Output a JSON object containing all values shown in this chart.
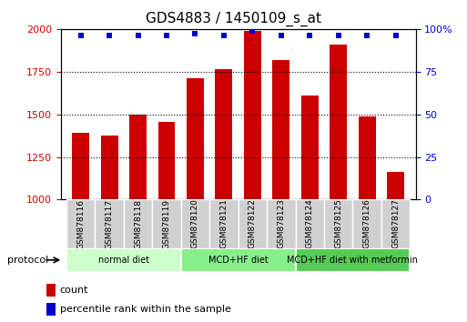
{
  "title": "GDS4883 / 1450109_s_at",
  "samples": [
    "GSM878116",
    "GSM878117",
    "GSM878118",
    "GSM878119",
    "GSM878120",
    "GSM878121",
    "GSM878122",
    "GSM878123",
    "GSM878124",
    "GSM878125",
    "GSM878126",
    "GSM878127"
  ],
  "counts": [
    1390,
    1375,
    1500,
    1455,
    1710,
    1765,
    1990,
    1820,
    1610,
    1910,
    1490,
    1165
  ],
  "percentile_ranks": [
    96,
    96,
    96,
    96,
    97,
    96,
    99,
    96,
    96,
    96,
    96,
    96
  ],
  "bar_color": "#cc0000",
  "dot_color": "#0000cc",
  "ylim_left": [
    1000,
    2000
  ],
  "ylim_right": [
    0,
    100
  ],
  "yticks_left": [
    1000,
    1250,
    1500,
    1750,
    2000
  ],
  "yticks_right": [
    0,
    25,
    50,
    75,
    100
  ],
  "groups": [
    {
      "label": "normal diet",
      "start": 0,
      "end": 4,
      "color": "#ccffcc"
    },
    {
      "label": "MCD+HF diet",
      "start": 4,
      "end": 8,
      "color": "#88ee88"
    },
    {
      "label": "MCD+HF diet with metformin",
      "start": 8,
      "end": 12,
      "color": "#55cc55"
    }
  ],
  "protocol_label": "protocol",
  "legend_count_label": "count",
  "legend_percentile_label": "percentile rank within the sample",
  "title_fontsize": 11,
  "tick_fontsize": 8,
  "bar_width": 0.6
}
